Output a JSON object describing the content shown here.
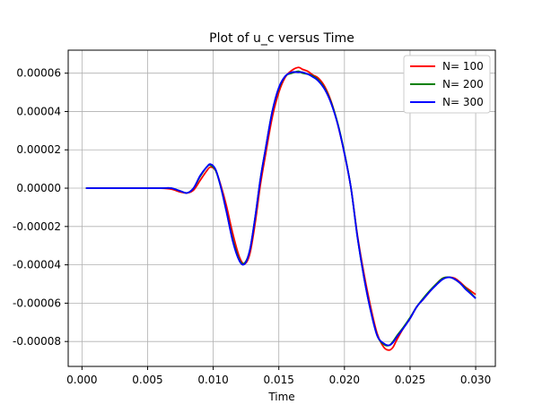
{
  "chart_data": {
    "type": "line",
    "title": "Plot of u_c versus Time",
    "xlabel": "Time",
    "ylabel": "",
    "xlim": [
      -0.00105,
      0.0315
    ],
    "ylim": [
      -9.3e-05,
      7.2e-05
    ],
    "xticks": [
      0.0,
      0.005,
      0.01,
      0.015,
      0.02,
      0.025,
      0.03
    ],
    "xtick_labels": [
      "0.000",
      "0.005",
      "0.010",
      "0.015",
      "0.020",
      "0.025",
      "0.030"
    ],
    "yticks": [
      6e-05,
      4e-05,
      2e-05,
      0.0,
      -2e-05,
      -4e-05,
      -6e-05,
      -8e-05
    ],
    "ytick_labels": [
      "0.00006",
      "0.00004",
      "0.00002",
      "0.00000",
      "-0.00002",
      "-0.00004",
      "-0.00006",
      "-0.00008"
    ],
    "grid": true,
    "legend_position": "top-right",
    "series": [
      {
        "name": "N= 100",
        "color": "#ff0000",
        "x": [
          0.0003,
          0.002,
          0.004,
          0.006,
          0.0068,
          0.0075,
          0.008,
          0.0085,
          0.009,
          0.0095,
          0.0098,
          0.0102,
          0.0106,
          0.011,
          0.0115,
          0.012,
          0.0124,
          0.0128,
          0.0132,
          0.0136,
          0.014,
          0.0145,
          0.015,
          0.0155,
          0.016,
          0.0165,
          0.0168,
          0.0172,
          0.0176,
          0.018,
          0.0185,
          0.019,
          0.0195,
          0.02,
          0.0205,
          0.021,
          0.0215,
          0.022,
          0.0225,
          0.023,
          0.0234,
          0.0237,
          0.024,
          0.0245,
          0.025,
          0.0255,
          0.026,
          0.0265,
          0.027,
          0.0275,
          0.028,
          0.0284,
          0.0288,
          0.0292,
          0.0296,
          0.03
        ],
        "y": [
          0.0,
          0.0,
          0.0,
          0.0,
          -5e-07,
          -2e-06,
          -2.5e-06,
          -1e-06,
          4e-06,
          9e-06,
          1.1e-05,
          9e-06,
          1e-06,
          -9e-06,
          -2.4e-05,
          -3.6e-05,
          -3.95e-05,
          -3.4e-05,
          -1.8e-05,
          2e-06,
          1.8e-05,
          3.7e-05,
          5e-05,
          5.8e-05,
          6.15e-05,
          6.3e-05,
          6.2e-05,
          6.1e-05,
          5.9e-05,
          5.75e-05,
          5.3e-05,
          4.5e-05,
          3.3e-05,
          1.8e-05,
          0.0,
          -2.5e-05,
          -4.5e-05,
          -6.2e-05,
          -7.6e-05,
          -8.3e-05,
          -8.45e-05,
          -8.3e-05,
          -7.9e-05,
          -7.3e-05,
          -6.8e-05,
          -6.2e-05,
          -5.8e-05,
          -5.4e-05,
          -5e-05,
          -4.7e-05,
          -4.65e-05,
          -4.7e-05,
          -4.9e-05,
          -5.15e-05,
          -5.35e-05,
          -5.55e-05
        ]
      },
      {
        "name": "N= 200",
        "color": "#008000",
        "x": [
          0.0003,
          0.002,
          0.004,
          0.006,
          0.0068,
          0.0075,
          0.008,
          0.0085,
          0.009,
          0.0095,
          0.0098,
          0.0102,
          0.0106,
          0.011,
          0.0115,
          0.012,
          0.0124,
          0.0128,
          0.0132,
          0.0136,
          0.014,
          0.0145,
          0.015,
          0.0155,
          0.016,
          0.0165,
          0.0168,
          0.0172,
          0.0176,
          0.018,
          0.0185,
          0.019,
          0.0195,
          0.02,
          0.0205,
          0.021,
          0.0215,
          0.022,
          0.0225,
          0.023,
          0.0234,
          0.0237,
          0.024,
          0.0245,
          0.025,
          0.0255,
          0.026,
          0.0265,
          0.027,
          0.0275,
          0.028,
          0.0284,
          0.0288,
          0.0292,
          0.0296,
          0.03
        ],
        "y": [
          0.0,
          0.0,
          0.0,
          0.0,
          0.0,
          -1.5e-06,
          -2.5e-06,
          0.0,
          6e-06,
          1.1e-05,
          1.2e-05,
          9e-06,
          0.0,
          -1.2e-05,
          -2.7e-05,
          -3.75e-05,
          -3.9e-05,
          -3.2e-05,
          -1.5e-05,
          5e-06,
          2.1e-05,
          4e-05,
          5.2e-05,
          5.85e-05,
          6e-05,
          6.1e-05,
          6e-05,
          5.95e-05,
          5.85e-05,
          5.65e-05,
          5.2e-05,
          4.45e-05,
          3.35e-05,
          1.85e-05,
          0.0,
          -2.6e-05,
          -4.7e-05,
          -6.4e-05,
          -7.7e-05,
          -8.15e-05,
          -8.2e-05,
          -8e-05,
          -7.7e-05,
          -7.25e-05,
          -6.75e-05,
          -6.2e-05,
          -5.75e-05,
          -5.35e-05,
          -5e-05,
          -4.7e-05,
          -4.65e-05,
          -4.75e-05,
          -4.95e-05,
          -5.2e-05,
          -5.45e-05,
          -5.75e-05
        ]
      },
      {
        "name": "N= 300",
        "color": "#0000ff",
        "x": [
          0.0003,
          0.002,
          0.004,
          0.006,
          0.0068,
          0.0075,
          0.008,
          0.0085,
          0.009,
          0.0095,
          0.0098,
          0.0102,
          0.0106,
          0.011,
          0.0115,
          0.012,
          0.0124,
          0.0128,
          0.0132,
          0.0136,
          0.014,
          0.0145,
          0.015,
          0.0155,
          0.016,
          0.0165,
          0.0168,
          0.0172,
          0.0176,
          0.018,
          0.0185,
          0.019,
          0.0195,
          0.02,
          0.0205,
          0.021,
          0.0215,
          0.022,
          0.0225,
          0.023,
          0.0234,
          0.0237,
          0.024,
          0.0245,
          0.025,
          0.0255,
          0.026,
          0.0265,
          0.027,
          0.0275,
          0.028,
          0.0284,
          0.0288,
          0.0292,
          0.0296,
          0.03
        ],
        "y": [
          0.0,
          0.0,
          0.0,
          0.0,
          0.0,
          -1.5e-06,
          -2.5e-06,
          0.0,
          6.5e-06,
          1.1e-05,
          1.25e-05,
          9.5e-06,
          0.0,
          -1.2e-05,
          -2.8e-05,
          -3.8e-05,
          -3.95e-05,
          -3.2e-05,
          -1.5e-05,
          5e-06,
          2.1e-05,
          4e-05,
          5.25e-05,
          5.85e-05,
          6.05e-05,
          6.05e-05,
          6.05e-05,
          5.95e-05,
          5.8e-05,
          5.6e-05,
          5.15e-05,
          4.4e-05,
          3.3e-05,
          1.8e-05,
          0.0,
          -2.6e-05,
          -4.7e-05,
          -6.4e-05,
          -7.7e-05,
          -8.1e-05,
          -8.2e-05,
          -8.05e-05,
          -7.75e-05,
          -7.3e-05,
          -6.8e-05,
          -6.2e-05,
          -5.8e-05,
          -5.4e-05,
          -5.05e-05,
          -4.75e-05,
          -4.65e-05,
          -4.75e-05,
          -4.95e-05,
          -5.25e-05,
          -5.5e-05,
          -5.75e-05
        ]
      }
    ]
  }
}
